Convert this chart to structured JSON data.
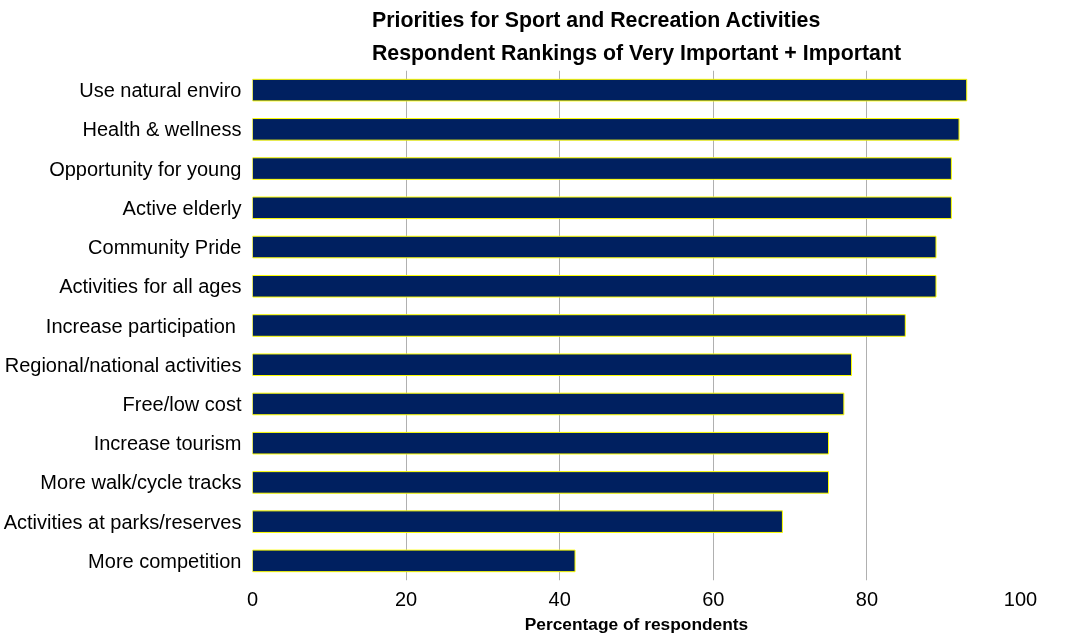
{
  "chart_data": {
    "type": "bar",
    "orientation": "horizontal",
    "title": "Priorities for Sport and Recreation  Activities\nRespondent Rankings of Very Important + Important",
    "xlabel": "Percentage of respondents",
    "categories": [
      "Use natural enviro",
      "Health & wellness",
      "Opportunity for young",
      "Active elderly",
      "Community Pride",
      "Activities for all ages",
      "Increase participation ",
      "Regional/national activities",
      "Free/low cost",
      "Increase tourism",
      "More walk/cycle tracks",
      "Activities at parks/reserves",
      "More competition"
    ],
    "values": [
      93,
      92,
      91,
      91,
      89,
      89,
      85,
      78,
      77,
      75,
      75,
      69,
      42
    ],
    "color": "#002060",
    "xlim": [
      0,
      100
    ],
    "xticks": [
      0,
      20,
      40,
      60,
      80,
      100
    ],
    "grid": "x"
  }
}
